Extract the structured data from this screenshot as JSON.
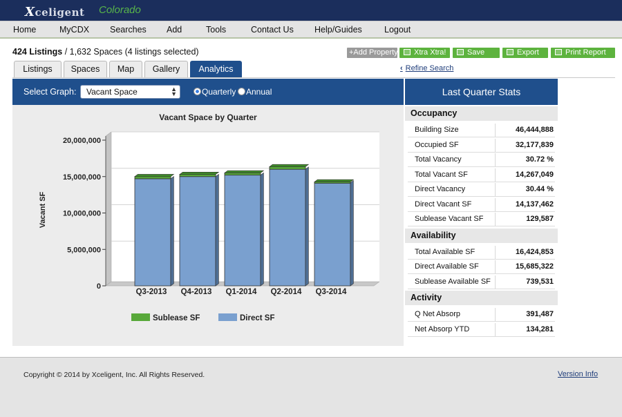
{
  "brand": {
    "logo_x": "X",
    "logo_rest": "celigent",
    "state": "Colorado"
  },
  "nav": [
    {
      "label": "Home"
    },
    {
      "label": "MyCDX"
    },
    {
      "label": "Searches"
    },
    {
      "label": "Add"
    },
    {
      "label": "Tools"
    },
    {
      "label": "Contact Us"
    },
    {
      "label": "Help/Guides"
    },
    {
      "label": "Logout"
    }
  ],
  "summary": {
    "listings": "424 Listings",
    "rest": " / 1,632 Spaces (4 listings selected)"
  },
  "actions": {
    "add_property": "+Add Property",
    "xtra": "Xtra  Xtra!",
    "save": "Save",
    "export": "Export",
    "print": "Print Report"
  },
  "tabs": [
    {
      "label": "Listings"
    },
    {
      "label": "Spaces"
    },
    {
      "label": "Map"
    },
    {
      "label": "Gallery"
    },
    {
      "label": "Analytics"
    }
  ],
  "refine": "Refine Search",
  "graph": {
    "select_label": "Select Graph:",
    "selected": "Vacant Space",
    "radio_quarterly": "Quarterly",
    "radio_annual": "Annual"
  },
  "chart_data": {
    "type": "bar",
    "title": "Vacant Space by Quarter",
    "ylabel": "Vacant SF",
    "xlabel": "",
    "categories": [
      "Q3-2013",
      "Q4-2013",
      "Q1-2014",
      "Q2-2014",
      "Q3-2014"
    ],
    "ylim": [
      0,
      20000000
    ],
    "yticks": [
      "0",
      "5,000,000",
      "10,000,000",
      "15,000,000",
      "20,000,000"
    ],
    "series": [
      {
        "name": "Direct SF",
        "color": "#7aa0cf",
        "values": [
          14700000,
          15000000,
          15200000,
          16000000,
          14137462
        ]
      },
      {
        "name": "Sublease SF",
        "color": "#58a83a",
        "values": [
          300000,
          300000,
          300000,
          350000,
          129587
        ]
      }
    ],
    "legend": [
      {
        "name": "Sublease SF",
        "color": "#58a83a"
      },
      {
        "name": "Direct SF",
        "color": "#7aa0cf"
      }
    ]
  },
  "stats": {
    "header": "Last Quarter Stats",
    "sections": [
      {
        "title": "Occupancy",
        "rows": [
          {
            "k": "Building Size",
            "v": "46,444,888"
          },
          {
            "k": "Occupied SF",
            "v": "32,177,839"
          },
          {
            "k": "Total Vacancy",
            "v": "30.72 %"
          },
          {
            "k": "Total Vacant SF",
            "v": "14,267,049"
          },
          {
            "k": "Direct Vacancy",
            "v": "30.44 %"
          },
          {
            "k": "Direct Vacant SF",
            "v": "14,137,462"
          },
          {
            "k": "Sublease Vacant SF",
            "v": "129,587"
          }
        ]
      },
      {
        "title": "Availability",
        "rows": [
          {
            "k": "Total Available SF",
            "v": "16,424,853"
          },
          {
            "k": "Direct Available SF",
            "v": "15,685,322"
          },
          {
            "k": "Sublease Available SF",
            "v": "739,531"
          }
        ]
      },
      {
        "title": "Activity",
        "rows": [
          {
            "k": "Q Net Absorp",
            "v": "391,487"
          },
          {
            "k": "Net Absorp YTD",
            "v": "134,281"
          }
        ]
      }
    ]
  },
  "footer": {
    "copyright": "Copyright © 2014 by Xceligent, Inc. All Rights Reserved.",
    "version": "Version Info"
  },
  "colors": {
    "navy": "#1b2e5c",
    "blue": "#1f4f8c",
    "green_btn": "#5db33e",
    "gray_btn": "#9a9a9a"
  }
}
